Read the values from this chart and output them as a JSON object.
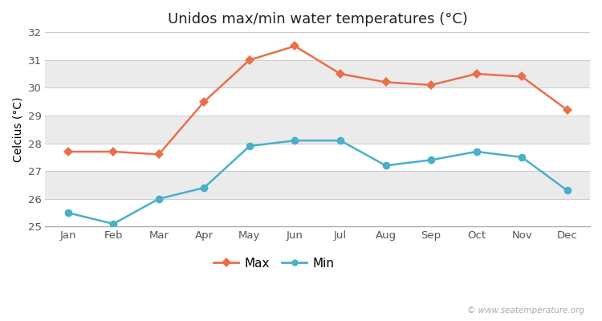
{
  "title": "Unidos max/min water temperatures (°C)",
  "ylabel": "Celcius (°C)",
  "months": [
    "Jan",
    "Feb",
    "Mar",
    "Apr",
    "May",
    "Jun",
    "Jul",
    "Aug",
    "Sep",
    "Oct",
    "Nov",
    "Dec"
  ],
  "max_values": [
    27.7,
    27.7,
    27.6,
    29.5,
    31.0,
    31.5,
    30.5,
    30.2,
    30.1,
    30.5,
    30.4,
    29.2
  ],
  "min_values": [
    25.5,
    25.1,
    26.0,
    26.4,
    27.9,
    28.1,
    28.1,
    27.2,
    27.4,
    27.7,
    27.5,
    26.3
  ],
  "max_color": "#e8704a",
  "min_color": "#4ab0c8",
  "ylim": [
    25,
    32
  ],
  "yticks": [
    25,
    26,
    27,
    28,
    29,
    30,
    31,
    32
  ],
  "bg_color": "#ffffff",
  "band_colors": [
    "#ffffff",
    "#ebebeb"
  ],
  "watermark": "© www.seatemperature.org",
  "legend_labels": [
    "Max",
    "Min"
  ],
  "title_fontsize": 13,
  "label_fontsize": 10,
  "tick_fontsize": 9.5,
  "watermark_fontsize": 7.5
}
